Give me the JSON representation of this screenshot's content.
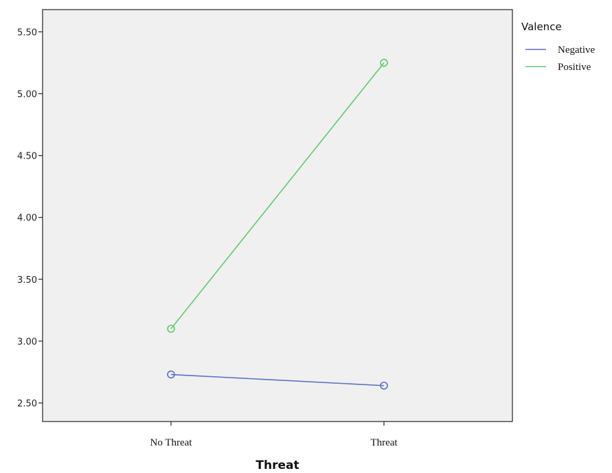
{
  "chart_data": {
    "type": "line",
    "xlabel": "Threat",
    "ylabel": "",
    "categories": [
      "No Threat",
      "Threat"
    ],
    "ylim": [
      2.35,
      5.68
    ],
    "yticks": [
      "2.50",
      "3.00",
      "3.50",
      "4.00",
      "4.50",
      "5.00",
      "5.50"
    ],
    "grid": false,
    "legend": {
      "title": "Valence",
      "placement": "right"
    },
    "series": [
      {
        "name": "Negative",
        "values": [
          2.73,
          2.64
        ],
        "color": "#5a6fc4"
      },
      {
        "name": "Positive",
        "values": [
          3.1,
          5.25
        ],
        "color": "#5fcb6a"
      }
    ],
    "plot_background": "#f0f0f0"
  }
}
